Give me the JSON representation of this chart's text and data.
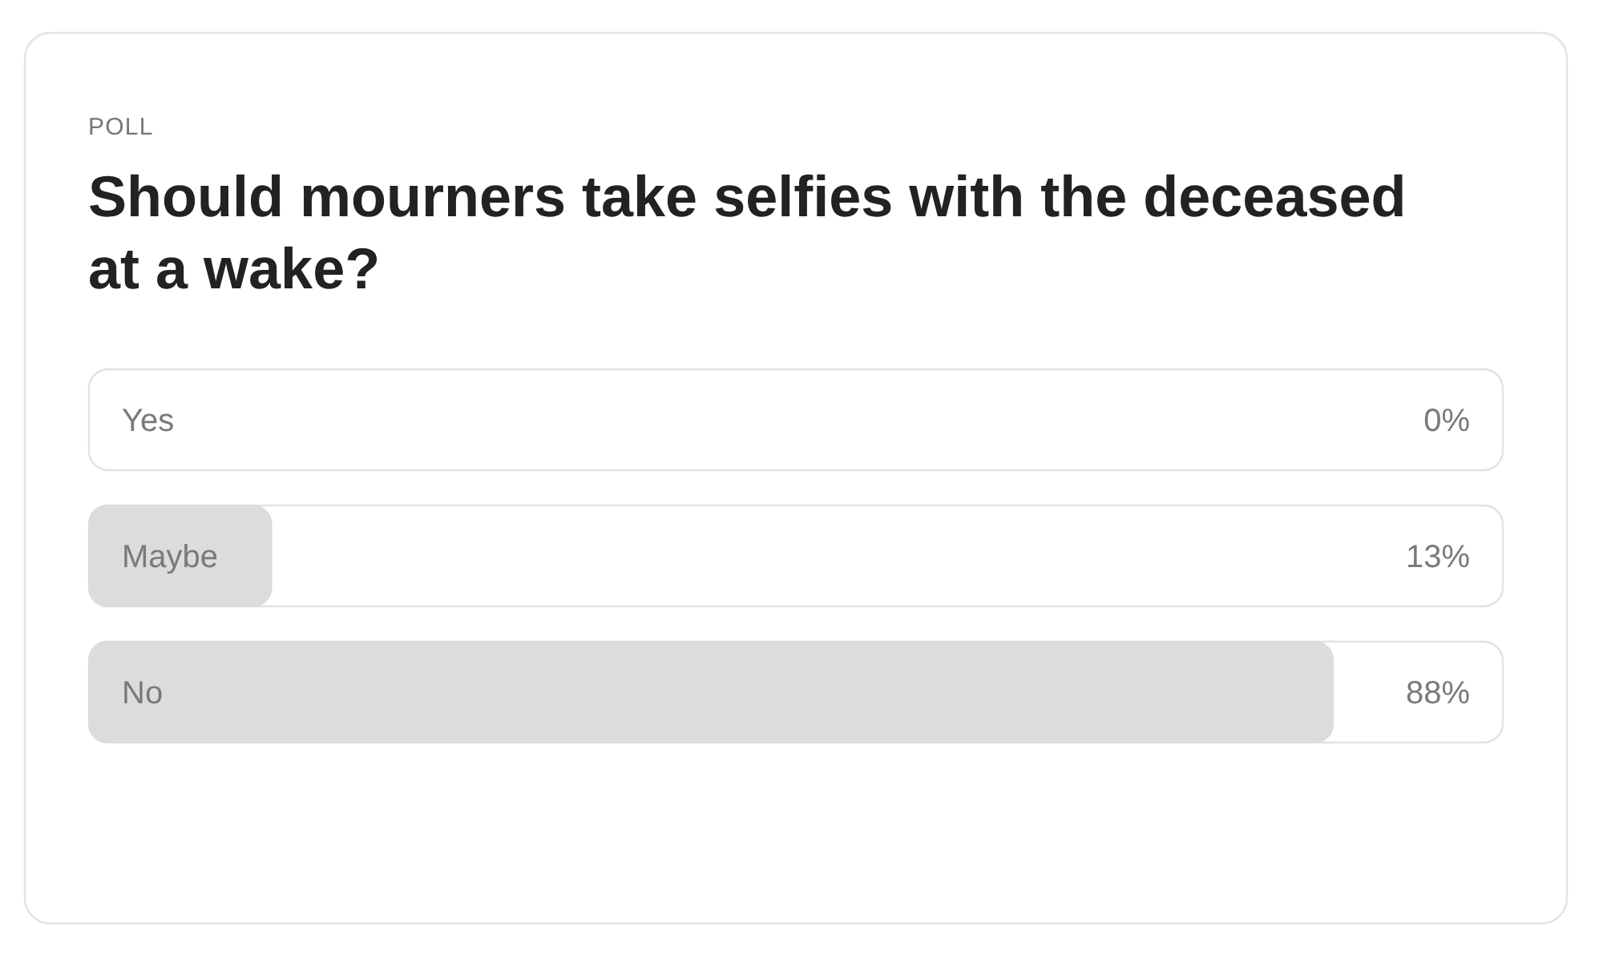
{
  "chart_data": {
    "type": "bar",
    "orientation": "horizontal",
    "subtitle": "POLL",
    "title": "Should mourners take selfies with the deceased at a wake?",
    "categories": [
      "Yes",
      "Maybe",
      "No"
    ],
    "values": [
      0,
      13,
      88
    ],
    "value_labels": [
      "0%",
      "13%",
      "88%"
    ],
    "color": "#dcdcdc",
    "xlim": [
      0,
      100
    ],
    "tick_labels": "y"
  }
}
